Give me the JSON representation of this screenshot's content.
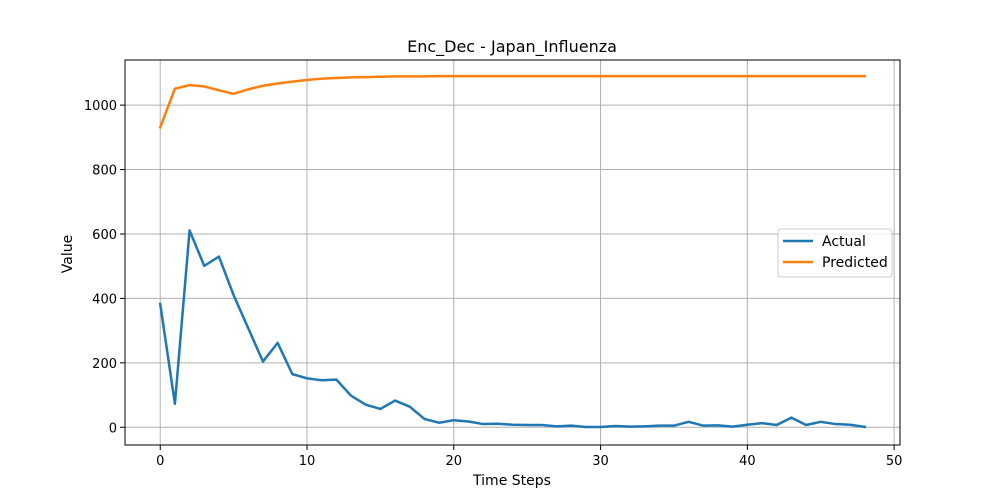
{
  "chart_data": {
    "type": "line",
    "title": "Enc_Dec - Japan_Influenza",
    "xlabel": "Time Steps",
    "ylabel": "Value",
    "xlim": [
      -2.4,
      50.4
    ],
    "ylim": [
      -55,
      1140
    ],
    "xticks": [
      0,
      10,
      20,
      30,
      40,
      50
    ],
    "yticks": [
      0,
      200,
      400,
      600,
      800,
      1000
    ],
    "grid": true,
    "legend_position": "center-right",
    "x": [
      0,
      1,
      2,
      3,
      4,
      5,
      6,
      7,
      8,
      9,
      10,
      11,
      12,
      13,
      14,
      15,
      16,
      17,
      18,
      19,
      20,
      21,
      22,
      23,
      24,
      25,
      26,
      27,
      28,
      29,
      30,
      31,
      32,
      33,
      34,
      35,
      36,
      37,
      38,
      39,
      40,
      41,
      42,
      43,
      44,
      45,
      46,
      47,
      48
    ],
    "series": [
      {
        "name": "Actual",
        "color": "#1f77b4",
        "values": [
          383,
          73,
          611,
          501,
          530,
          410,
          307,
          204,
          262,
          165,
          152,
          146,
          148,
          98,
          70,
          57,
          83,
          64,
          26,
          14,
          22,
          18,
          10,
          11,
          8,
          7,
          7,
          3,
          5,
          1,
          1,
          4,
          2,
          3,
          5,
          5,
          17,
          5,
          6,
          2,
          8,
          13,
          7,
          30,
          7,
          17,
          10,
          8,
          1
        ]
      },
      {
        "name": "Predicted",
        "color": "#ff7f0e",
        "values": [
          931,
          1051,
          1062,
          1058,
          1046,
          1035,
          1049,
          1060,
          1067,
          1073,
          1078,
          1082,
          1084,
          1086,
          1087,
          1088,
          1089,
          1089,
          1089,
          1090,
          1090,
          1090,
          1090,
          1090,
          1090,
          1090,
          1090,
          1090,
          1090,
          1090,
          1090,
          1090,
          1090,
          1090,
          1090,
          1090,
          1090,
          1090,
          1090,
          1090,
          1090,
          1090,
          1090,
          1090,
          1090,
          1090,
          1090,
          1090,
          1090
        ]
      }
    ]
  }
}
